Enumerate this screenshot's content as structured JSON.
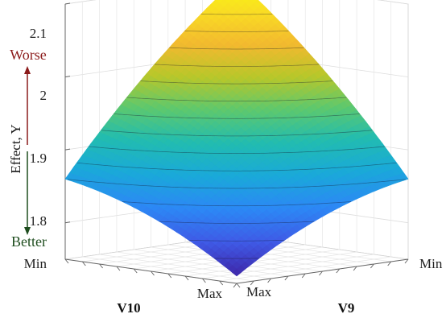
{
  "chart_data": {
    "type": "surface",
    "xlabel": "V9",
    "ylabel": "V10",
    "zlabel": "Effect, Y",
    "x_ticks": [
      "Min",
      "Max"
    ],
    "y_ticks": [
      "Min",
      "Max"
    ],
    "zlim": [
      1.75,
      2.1
    ],
    "z_ticks": [
      1.8,
      1.9,
      2,
      2.1
    ],
    "z_tick_labels": [
      "1.8",
      "1.9",
      "2",
      "2.1"
    ],
    "grid": true,
    "corners": {
      "x_min_y_min": 2.1,
      "x_max_y_min": 1.86,
      "x_min_y_max": 1.86,
      "x_max_y_max": 1.76
    },
    "annotations": {
      "top": "Worse",
      "bottom": "Better",
      "top_color": "#8b1a1a",
      "bottom_color": "#1e4d1e"
    },
    "colormap": [
      "#3e26a8",
      "#3f5ae6",
      "#2c88f5",
      "#1aa9d9",
      "#22bcb0",
      "#5dc86e",
      "#b8c72a",
      "#f2b92f",
      "#f9dc24",
      "#f9fb0e"
    ]
  }
}
